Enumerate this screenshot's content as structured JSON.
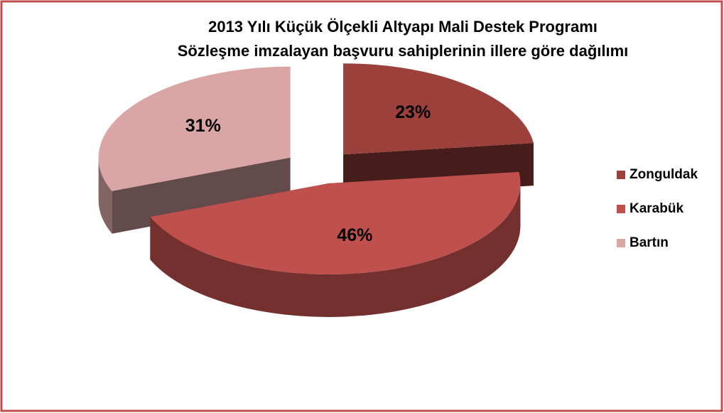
{
  "chart_data": {
    "type": "pie",
    "title": "2013 Yılı Küçük Ölçekli Altyapı  Mali Destek Programı",
    "subtitle": "Sözleşme imzalayan başvuru sahiplerinin illere göre dağılımı",
    "categories": [
      "Zonguldak",
      "Karabük",
      "Bartın"
    ],
    "values": [
      23,
      46,
      31
    ],
    "value_labels": [
      "23%",
      "46%",
      "31%"
    ],
    "colors": [
      "#9c403c",
      "#c0504d",
      "#d9a6a5"
    ],
    "legend": "right"
  }
}
